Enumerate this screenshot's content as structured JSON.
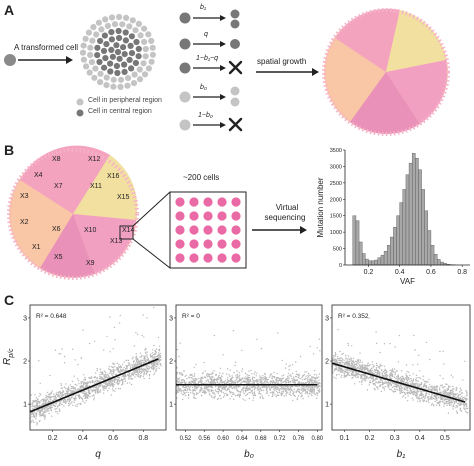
{
  "panels": {
    "a": {
      "letter": "A",
      "transformed_cell_label": "A transformed cell",
      "legend_peripheral": "Cell in peripheral region",
      "legend_central": "Cell in central region",
      "rates": [
        "b₁",
        "q",
        "1−b₁−q",
        "b₀",
        "1−b₀"
      ],
      "spatial_growth_label": "spatial growth"
    },
    "b": {
      "letter": "B",
      "regions": [
        "X8",
        "X12",
        "X4",
        "X7",
        "X11",
        "X16",
        "X3",
        "X15",
        "X2",
        "X6",
        "X10",
        "X14",
        "X1",
        "X13",
        "X5",
        "X9"
      ],
      "cells_label": "~200 cells",
      "virtual_label_1": "Virtual",
      "virtual_label_2": "sequencing",
      "hist_ylabel": "Mutation number",
      "hist_xlabel": "VAF",
      "hist_yticks": [
        "0",
        "500",
        "1000",
        "1500",
        "2000",
        "2500",
        "3000",
        "3500"
      ],
      "hist_xticks": [
        "0.2",
        "0.4",
        "0.6",
        "0.8"
      ]
    },
    "c": {
      "letter": "C",
      "ylabel_main": "R",
      "ylabel_sub": "p/c",
      "plots": [
        {
          "r2": "R² = 0.648",
          "xlabel": "q",
          "xticks": [
            "0.2",
            "0.4",
            "0.6",
            "0.8"
          ],
          "yticks": [
            "1",
            "2",
            "3"
          ]
        },
        {
          "r2": "R² = 0",
          "xlabel": "b₀",
          "xticks": [
            "0.52",
            "0.56",
            "0.60",
            "0.64",
            "0.68",
            "0.72",
            "0.76",
            "0.80"
          ],
          "yticks": [
            "1",
            "2",
            "3"
          ]
        },
        {
          "r2": "R² = 0.352",
          "xlabel": "b₁",
          "xticks": [
            "0.1",
            "0.2",
            "0.3",
            "0.4",
            "0.5"
          ],
          "yticks": [
            "1",
            "2",
            "3"
          ]
        }
      ]
    }
  },
  "chart_data": [
    {
      "type": "bar",
      "xlabel": "VAF",
      "ylabel": "Mutation number",
      "xlim": [
        0.05,
        0.85
      ],
      "ylim": [
        0,
        3500
      ],
      "bin_centers": [
        0.11,
        0.13,
        0.15,
        0.17,
        0.19,
        0.21,
        0.23,
        0.25,
        0.27,
        0.29,
        0.31,
        0.33,
        0.35,
        0.37,
        0.39,
        0.41,
        0.43,
        0.45,
        0.47,
        0.49,
        0.51,
        0.53,
        0.55,
        0.57,
        0.59,
        0.61,
        0.63,
        0.65,
        0.67,
        0.69,
        0.71,
        0.73,
        0.75
      ],
      "values": [
        1500,
        1350,
        700,
        350,
        180,
        130,
        130,
        150,
        220,
        300,
        420,
        600,
        850,
        1150,
        1500,
        1900,
        2300,
        2750,
        3100,
        3400,
        3250,
        2900,
        2300,
        1650,
        1050,
        600,
        330,
        170,
        90,
        50,
        25,
        12,
        5
      ]
    },
    {
      "type": "scatter",
      "xlabel": "q",
      "ylabel": "R p/c",
      "xlim": [
        0.05,
        0.95
      ],
      "ylim": [
        0.4,
        3.3
      ],
      "fit": {
        "x": [
          0.05,
          0.9
        ],
        "y": [
          0.82,
          2.05
        ]
      },
      "r2": 0.648
    },
    {
      "type": "scatter",
      "xlabel": "b₀",
      "ylabel": "R p/c",
      "xlim": [
        0.5,
        0.81
      ],
      "ylim": [
        0.4,
        3.3
      ],
      "fit": {
        "x": [
          0.5,
          0.8
        ],
        "y": [
          1.45,
          1.45
        ]
      },
      "r2": 0
    },
    {
      "type": "scatter",
      "xlabel": "b₁",
      "ylabel": "R p/c",
      "xlim": [
        0.05,
        0.6
      ],
      "ylim": [
        0.4,
        3.3
      ],
      "fit": {
        "x": [
          0.05,
          0.58
        ],
        "y": [
          1.95,
          1.05
        ]
      },
      "r2": 0.352
    }
  ],
  "colors": {
    "pink": "#f4a6c1",
    "peach": "#f8c6a8",
    "yellow": "#f3e2a6",
    "magenta_cell": "#e96aa5",
    "grey_dark": "#7a7a7a",
    "grey_light": "#bdbdbd",
    "scatter": "#b8b8b8"
  },
  "icons": [
    "arrow-icon",
    "cross-icon"
  ]
}
